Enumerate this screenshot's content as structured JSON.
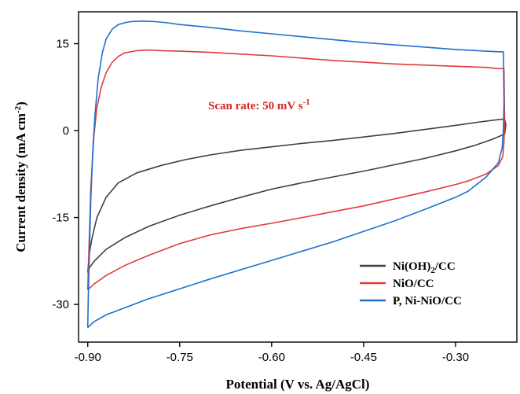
{
  "chart_data": {
    "type": "line",
    "xlabel": "Potential (V vs. Ag/AgCl)",
    "ylabel_parts": [
      "Current density (mA cm",
      "-2",
      ")"
    ],
    "xlim": [
      -0.915,
      -0.2
    ],
    "ylim": [
      -36.5,
      20.5
    ],
    "xticks": [
      -0.9,
      -0.75,
      -0.6,
      -0.45,
      -0.3
    ],
    "xtick_labels": [
      "-0.90",
      "-0.75",
      "-0.60",
      "-0.45",
      "-0.30"
    ],
    "yticks": [
      15,
      0,
      -15,
      -30
    ],
    "ytick_labels": [
      "15",
      "0",
      "-15",
      "-30"
    ],
    "grid": false,
    "legend_placement": "bottom-right",
    "annotation": {
      "parts": [
        "Scan rate: 50 mV s",
        "-1"
      ],
      "color": "#d62728"
    },
    "series": [
      {
        "name_parts": [
          "Ni(OH)",
          "2",
          "/CC"
        ],
        "color": "#404040",
        "x": [
          -0.9,
          -0.897,
          -0.893,
          -0.885,
          -0.87,
          -0.85,
          -0.82,
          -0.78,
          -0.74,
          -0.7,
          -0.65,
          -0.6,
          -0.55,
          -0.5,
          -0.45,
          -0.4,
          -0.35,
          -0.3,
          -0.26,
          -0.23,
          -0.22,
          -0.218,
          -0.22,
          -0.24,
          -0.27,
          -0.3,
          -0.35,
          -0.4,
          -0.45,
          -0.5,
          -0.55,
          -0.6,
          -0.65,
          -0.7,
          -0.75,
          -0.8,
          -0.84,
          -0.87,
          -0.89,
          -0.898,
          -0.9
        ],
        "y": [
          -24.5,
          -21.0,
          -18.5,
          -15.0,
          -11.5,
          -9.0,
          -7.3,
          -6.0,
          -5.0,
          -4.2,
          -3.4,
          -2.8,
          -2.2,
          -1.7,
          -1.1,
          -0.5,
          0.2,
          0.9,
          1.5,
          1.9,
          2.0,
          1.0,
          -0.6,
          -1.5,
          -2.6,
          -3.5,
          -4.8,
          -5.9,
          -7.0,
          -8.0,
          -9.0,
          -10.1,
          -11.5,
          -13.0,
          -14.6,
          -16.5,
          -18.5,
          -20.5,
          -22.6,
          -23.8,
          -24.5
        ]
      },
      {
        "name_parts": [
          "NiO/CC"
        ],
        "color": "#e03c3c",
        "x": [
          -0.9,
          -0.898,
          -0.895,
          -0.89,
          -0.885,
          -0.878,
          -0.87,
          -0.86,
          -0.85,
          -0.84,
          -0.82,
          -0.8,
          -0.78,
          -0.75,
          -0.7,
          -0.65,
          -0.6,
          -0.55,
          -0.5,
          -0.45,
          -0.4,
          -0.35,
          -0.3,
          -0.25,
          -0.23,
          -0.221,
          -0.22,
          -0.221,
          -0.223,
          -0.23,
          -0.25,
          -0.28,
          -0.3,
          -0.35,
          -0.4,
          -0.45,
          -0.5,
          -0.55,
          -0.6,
          -0.65,
          -0.7,
          -0.75,
          -0.8,
          -0.84,
          -0.87,
          -0.89,
          -0.9
        ],
        "y": [
          -27.5,
          -20.0,
          -10.0,
          -1.0,
          4.0,
          7.5,
          10.0,
          11.8,
          12.8,
          13.4,
          13.8,
          13.9,
          13.8,
          13.7,
          13.5,
          13.2,
          12.9,
          12.5,
          12.1,
          11.8,
          11.5,
          11.3,
          11.1,
          10.9,
          10.7,
          10.7,
          2.0,
          -2.0,
          -4.5,
          -6.0,
          -7.5,
          -8.7,
          -9.3,
          -10.6,
          -11.8,
          -13.0,
          -14.0,
          -15.0,
          -16.0,
          -16.9,
          -18.0,
          -19.5,
          -21.5,
          -23.3,
          -25.0,
          -26.5,
          -27.5
        ]
      },
      {
        "name_parts": [
          "P, Ni-NiO/CC"
        ],
        "color": "#1f6fce",
        "x": [
          -0.9,
          -0.899,
          -0.897,
          -0.895,
          -0.892,
          -0.888,
          -0.883,
          -0.876,
          -0.87,
          -0.86,
          -0.85,
          -0.84,
          -0.83,
          -0.81,
          -0.79,
          -0.77,
          -0.75,
          -0.7,
          -0.65,
          -0.6,
          -0.55,
          -0.5,
          -0.45,
          -0.4,
          -0.35,
          -0.3,
          -0.25,
          -0.23,
          -0.222,
          -0.221,
          -0.222,
          -0.224,
          -0.23,
          -0.25,
          -0.28,
          -0.3,
          -0.35,
          -0.4,
          -0.45,
          -0.5,
          -0.55,
          -0.6,
          -0.65,
          -0.7,
          -0.75,
          -0.8,
          -0.84,
          -0.87,
          -0.89,
          -0.898,
          -0.9
        ],
        "y": [
          -34.0,
          -28.0,
          -20.0,
          -12.0,
          -4.0,
          3.0,
          9.0,
          13.5,
          15.8,
          17.5,
          18.3,
          18.6,
          18.8,
          18.9,
          18.8,
          18.6,
          18.3,
          17.8,
          17.2,
          16.7,
          16.2,
          15.7,
          15.2,
          14.8,
          14.4,
          14.0,
          13.7,
          13.6,
          13.6,
          5.0,
          0.0,
          -3.0,
          -5.5,
          -8.0,
          -10.5,
          -11.5,
          -13.6,
          -15.6,
          -17.4,
          -19.2,
          -20.8,
          -22.4,
          -24.0,
          -25.6,
          -27.3,
          -29.0,
          -30.6,
          -31.8,
          -33.0,
          -33.8,
          -34.0
        ]
      }
    ]
  }
}
